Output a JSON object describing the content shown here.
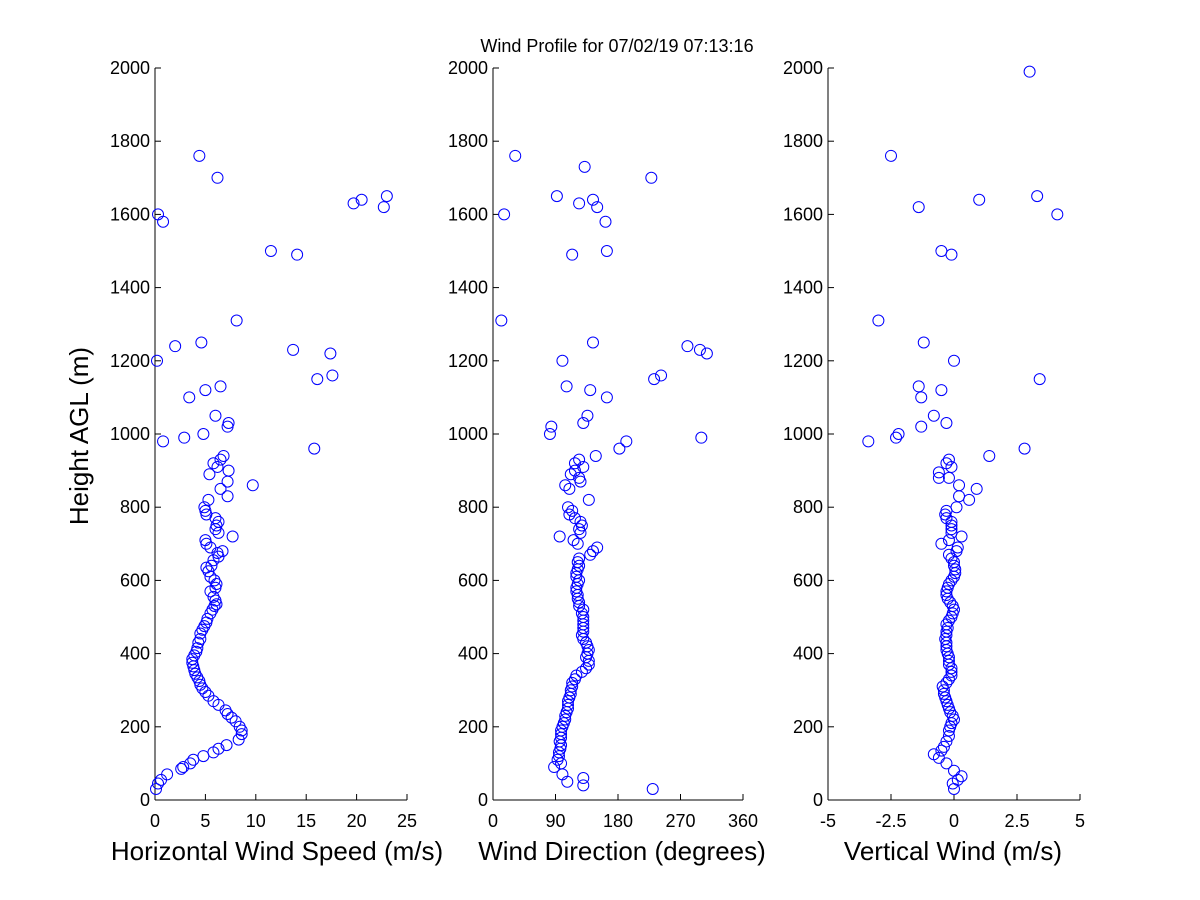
{
  "title": "Wind Profile for  07/02/19 07:13:16",
  "marker_color": "#0000ff",
  "chart_data": [
    {
      "type": "scatter",
      "xlabel": "Horizontal Wind Speed (m/s)",
      "ylabel": "Height AGL (m)",
      "xlim": [
        0,
        25
      ],
      "ylim": [
        0,
        2000
      ],
      "xticks": [
        "0",
        "5",
        "10",
        "15",
        "20",
        "25"
      ],
      "yticks": [
        "0",
        "200",
        "400",
        "600",
        "800",
        "1000",
        "1200",
        "1400",
        "1600",
        "1800",
        "2000"
      ],
      "points": [
        [
          0.1,
          30
        ],
        [
          0.3,
          45
        ],
        [
          0.6,
          55
        ],
        [
          1.2,
          70
        ],
        [
          2.6,
          85
        ],
        [
          2.8,
          90
        ],
        [
          3.5,
          100
        ],
        [
          3.8,
          110
        ],
        [
          4.8,
          120
        ],
        [
          5.8,
          130
        ],
        [
          6.3,
          140
        ],
        [
          7.1,
          150
        ],
        [
          8.3,
          165
        ],
        [
          8.6,
          180
        ],
        [
          8.6,
          190
        ],
        [
          8.4,
          200
        ],
        [
          8.0,
          215
        ],
        [
          7.6,
          225
        ],
        [
          7.2,
          235
        ],
        [
          7.0,
          245
        ],
        [
          6.3,
          260
        ],
        [
          5.8,
          270
        ],
        [
          5.3,
          285
        ],
        [
          5.0,
          295
        ],
        [
          4.7,
          305
        ],
        [
          4.5,
          315
        ],
        [
          4.4,
          325
        ],
        [
          4.2,
          335
        ],
        [
          4.0,
          345
        ],
        [
          3.9,
          355
        ],
        [
          3.8,
          365
        ],
        [
          3.7,
          375
        ],
        [
          3.7,
          385
        ],
        [
          3.9,
          395
        ],
        [
          4.1,
          405
        ],
        [
          4.2,
          415
        ],
        [
          4.3,
          430
        ],
        [
          4.5,
          440
        ],
        [
          4.5,
          455
        ],
        [
          4.7,
          465
        ],
        [
          4.9,
          475
        ],
        [
          5.1,
          485
        ],
        [
          5.2,
          495
        ],
        [
          5.5,
          510
        ],
        [
          5.7,
          520
        ],
        [
          5.9,
          530
        ],
        [
          6.1,
          535
        ],
        [
          6.0,
          545
        ],
        [
          5.8,
          555
        ],
        [
          5.5,
          570
        ],
        [
          6.0,
          580
        ],
        [
          6.1,
          590
        ],
        [
          5.9,
          600
        ],
        [
          5.5,
          610
        ],
        [
          5.3,
          625
        ],
        [
          5.1,
          635
        ],
        [
          5.6,
          640
        ],
        [
          5.8,
          655
        ],
        [
          6.3,
          665
        ],
        [
          6.2,
          675
        ],
        [
          6.7,
          680
        ],
        [
          5.5,
          690
        ],
        [
          5.1,
          700
        ],
        [
          5.0,
          710
        ],
        [
          7.7,
          720
        ],
        [
          6.3,
          730
        ],
        [
          6.0,
          740
        ],
        [
          6.1,
          750
        ],
        [
          6.3,
          760
        ],
        [
          6.0,
          770
        ],
        [
          5.1,
          780
        ],
        [
          5.0,
          790
        ],
        [
          4.9,
          800
        ],
        [
          5.3,
          820
        ],
        [
          7.2,
          830
        ],
        [
          6.5,
          850
        ],
        [
          9.7,
          860
        ],
        [
          7.2,
          870
        ],
        [
          5.4,
          890
        ],
        [
          7.3,
          900
        ],
        [
          6.2,
          910
        ],
        [
          5.8,
          920
        ],
        [
          6.5,
          930
        ],
        [
          6.8,
          940
        ],
        [
          15.8,
          960
        ],
        [
          0.8,
          980
        ],
        [
          2.9,
          990
        ],
        [
          4.8,
          1000
        ],
        [
          7.2,
          1020
        ],
        [
          7.3,
          1030
        ],
        [
          6.0,
          1050
        ],
        [
          3.4,
          1100
        ],
        [
          5.0,
          1120
        ],
        [
          6.5,
          1130
        ],
        [
          16.1,
          1150
        ],
        [
          17.6,
          1160
        ],
        [
          0.2,
          1200
        ],
        [
          17.4,
          1220
        ],
        [
          13.7,
          1230
        ],
        [
          2.0,
          1240
        ],
        [
          4.6,
          1250
        ],
        [
          8.1,
          1310
        ],
        [
          14.1,
          1490
        ],
        [
          11.5,
          1500
        ],
        [
          0.8,
          1580
        ],
        [
          0.3,
          1600
        ],
        [
          22.7,
          1620
        ],
        [
          19.7,
          1630
        ],
        [
          20.5,
          1640
        ],
        [
          23.0,
          1650
        ],
        [
          6.2,
          1700
        ],
        [
          4.4,
          1760
        ]
      ]
    },
    {
      "type": "scatter",
      "xlabel": "Wind Direction (degrees)",
      "ylabel": "",
      "xlim": [
        0,
        360
      ],
      "ylim": [
        0,
        2000
      ],
      "xticks": [
        "0",
        "90",
        "180",
        "270",
        "360"
      ],
      "yticks": [
        "0",
        "200",
        "400",
        "600",
        "800",
        "1000",
        "1200",
        "1400",
        "1600",
        "1800",
        "2000"
      ],
      "points": [
        [
          230,
          30
        ],
        [
          130,
          40
        ],
        [
          107,
          50
        ],
        [
          130,
          60
        ],
        [
          100,
          70
        ],
        [
          88,
          90
        ],
        [
          98,
          100
        ],
        [
          93,
          110
        ],
        [
          95,
          120
        ],
        [
          95,
          130
        ],
        [
          97,
          140
        ],
        [
          98,
          150
        ],
        [
          96,
          160
        ],
        [
          98,
          170
        ],
        [
          98,
          180
        ],
        [
          98,
          190
        ],
        [
          100,
          200
        ],
        [
          102,
          210
        ],
        [
          104,
          220
        ],
        [
          104,
          230
        ],
        [
          106,
          240
        ],
        [
          108,
          250
        ],
        [
          108,
          260
        ],
        [
          108,
          270
        ],
        [
          110,
          280
        ],
        [
          112,
          290
        ],
        [
          112,
          300
        ],
        [
          114,
          310
        ],
        [
          114,
          320
        ],
        [
          118,
          330
        ],
        [
          120,
          340
        ],
        [
          128,
          350
        ],
        [
          134,
          360
        ],
        [
          138,
          370
        ],
        [
          138,
          380
        ],
        [
          134,
          390
        ],
        [
          136,
          400
        ],
        [
          138,
          410
        ],
        [
          136,
          420
        ],
        [
          134,
          430
        ],
        [
          130,
          440
        ],
        [
          128,
          450
        ],
        [
          130,
          460
        ],
        [
          130,
          470
        ],
        [
          130,
          480
        ],
        [
          130,
          490
        ],
        [
          130,
          500
        ],
        [
          128,
          510
        ],
        [
          130,
          520
        ],
        [
          124,
          530
        ],
        [
          124,
          540
        ],
        [
          122,
          550
        ],
        [
          122,
          560
        ],
        [
          120,
          570
        ],
        [
          120,
          580
        ],
        [
          122,
          590
        ],
        [
          124,
          600
        ],
        [
          120,
          610
        ],
        [
          120,
          620
        ],
        [
          122,
          630
        ],
        [
          124,
          640
        ],
        [
          122,
          650
        ],
        [
          124,
          660
        ],
        [
          140,
          670
        ],
        [
          144,
          680
        ],
        [
          150,
          690
        ],
        [
          122,
          700
        ],
        [
          116,
          710
        ],
        [
          96,
          720
        ],
        [
          126,
          730
        ],
        [
          124,
          740
        ],
        [
          128,
          750
        ],
        [
          126,
          760
        ],
        [
          118,
          770
        ],
        [
          110,
          780
        ],
        [
          114,
          790
        ],
        [
          108,
          800
        ],
        [
          138,
          820
        ],
        [
          110,
          850
        ],
        [
          104,
          860
        ],
        [
          126,
          870
        ],
        [
          124,
          880
        ],
        [
          112,
          890
        ],
        [
          118,
          900
        ],
        [
          130,
          910
        ],
        [
          118,
          920
        ],
        [
          124,
          930
        ],
        [
          148,
          940
        ],
        [
          182,
          960
        ],
        [
          192,
          980
        ],
        [
          82,
          1000
        ],
        [
          300,
          990
        ],
        [
          84,
          1020
        ],
        [
          130,
          1030
        ],
        [
          136,
          1050
        ],
        [
          164,
          1100
        ],
        [
          140,
          1120
        ],
        [
          106,
          1130
        ],
        [
          232,
          1150
        ],
        [
          242,
          1160
        ],
        [
          100,
          1200
        ],
        [
          308,
          1220
        ],
        [
          298,
          1230
        ],
        [
          280,
          1240
        ],
        [
          144,
          1250
        ],
        [
          12,
          1310
        ],
        [
          114,
          1490
        ],
        [
          164,
          1500
        ],
        [
          162,
          1580
        ],
        [
          16,
          1600
        ],
        [
          150,
          1620
        ],
        [
          124,
          1630
        ],
        [
          144,
          1640
        ],
        [
          92,
          1650
        ],
        [
          228,
          1700
        ],
        [
          132,
          1730
        ],
        [
          32,
          1760
        ]
      ]
    },
    {
      "type": "scatter",
      "xlabel": "Vertical Wind (m/s)",
      "ylabel": "",
      "xlim": [
        -5,
        5
      ],
      "ylim": [
        0,
        2000
      ],
      "xticks": [
        "-5",
        "-2.5",
        "0",
        "2.5",
        "5"
      ],
      "yticks": [
        "0",
        "200",
        "400",
        "600",
        "800",
        "1000",
        "1200",
        "1400",
        "1600",
        "1800",
        "2000"
      ],
      "points": [
        [
          0.0,
          30
        ],
        [
          -0.05,
          45
        ],
        [
          0.15,
          55
        ],
        [
          0.3,
          65
        ],
        [
          0.0,
          80
        ],
        [
          -0.3,
          100
        ],
        [
          -0.6,
          115
        ],
        [
          -0.8,
          125
        ],
        [
          -0.5,
          135
        ],
        [
          -0.4,
          145
        ],
        [
          -0.3,
          160
        ],
        [
          -0.2,
          175
        ],
        [
          -0.2,
          190
        ],
        [
          -0.15,
          200
        ],
        [
          -0.1,
          210
        ],
        [
          0.0,
          220
        ],
        [
          -0.05,
          230
        ],
        [
          -0.15,
          240
        ],
        [
          -0.2,
          250
        ],
        [
          -0.25,
          260
        ],
        [
          -0.3,
          270
        ],
        [
          -0.35,
          280
        ],
        [
          -0.4,
          290
        ],
        [
          -0.4,
          300
        ],
        [
          -0.45,
          310
        ],
        [
          -0.3,
          320
        ],
        [
          -0.2,
          330
        ],
        [
          -0.1,
          340
        ],
        [
          -0.1,
          350
        ],
        [
          -0.1,
          360
        ],
        [
          -0.2,
          370
        ],
        [
          -0.2,
          380
        ],
        [
          -0.2,
          390
        ],
        [
          -0.25,
          400
        ],
        [
          -0.3,
          410
        ],
        [
          -0.3,
          420
        ],
        [
          -0.3,
          430
        ],
        [
          -0.35,
          440
        ],
        [
          -0.3,
          450
        ],
        [
          -0.3,
          460
        ],
        [
          -0.25,
          470
        ],
        [
          -0.3,
          480
        ],
        [
          -0.2,
          490
        ],
        [
          -0.1,
          500
        ],
        [
          -0.05,
          510
        ],
        [
          0.0,
          520
        ],
        [
          -0.05,
          530
        ],
        [
          -0.15,
          540
        ],
        [
          -0.25,
          550
        ],
        [
          -0.3,
          560
        ],
        [
          -0.3,
          570
        ],
        [
          -0.25,
          580
        ],
        [
          -0.2,
          590
        ],
        [
          -0.1,
          600
        ],
        [
          0.0,
          610
        ],
        [
          0.05,
          620
        ],
        [
          0.05,
          630
        ],
        [
          0.0,
          640
        ],
        [
          0.0,
          650
        ],
        [
          -0.1,
          660
        ],
        [
          -0.2,
          670
        ],
        [
          0.1,
          680
        ],
        [
          0.15,
          690
        ],
        [
          -0.5,
          700
        ],
        [
          -0.2,
          710
        ],
        [
          0.3,
          720
        ],
        [
          -0.1,
          730
        ],
        [
          -0.1,
          740
        ],
        [
          -0.1,
          750
        ],
        [
          -0.1,
          760
        ],
        [
          -0.3,
          770
        ],
        [
          -0.35,
          780
        ],
        [
          -0.3,
          790
        ],
        [
          0.1,
          800
        ],
        [
          0.6,
          820
        ],
        [
          0.2,
          830
        ],
        [
          0.9,
          850
        ],
        [
          0.2,
          860
        ],
        [
          -0.6,
          880
        ],
        [
          -0.2,
          880
        ],
        [
          -0.6,
          895
        ],
        [
          -0.1,
          910
        ],
        [
          -0.3,
          920
        ],
        [
          -0.2,
          930
        ],
        [
          1.4,
          940
        ],
        [
          2.8,
          960
        ],
        [
          -3.4,
          980
        ],
        [
          -2.3,
          990
        ],
        [
          -2.2,
          1000
        ],
        [
          -1.3,
          1020
        ],
        [
          -0.3,
          1030
        ],
        [
          -0.8,
          1050
        ],
        [
          -1.3,
          1100
        ],
        [
          -0.5,
          1120
        ],
        [
          -1.4,
          1130
        ],
        [
          3.4,
          1150
        ],
        [
          0.0,
          1200
        ],
        [
          -1.2,
          1250
        ],
        [
          -3.0,
          1310
        ],
        [
          -0.1,
          1490
        ],
        [
          -0.5,
          1500
        ],
        [
          4.1,
          1600
        ],
        [
          -1.4,
          1620
        ],
        [
          1.0,
          1640
        ],
        [
          3.3,
          1650
        ],
        [
          -2.5,
          1760
        ],
        [
          3.0,
          1990
        ]
      ]
    }
  ]
}
